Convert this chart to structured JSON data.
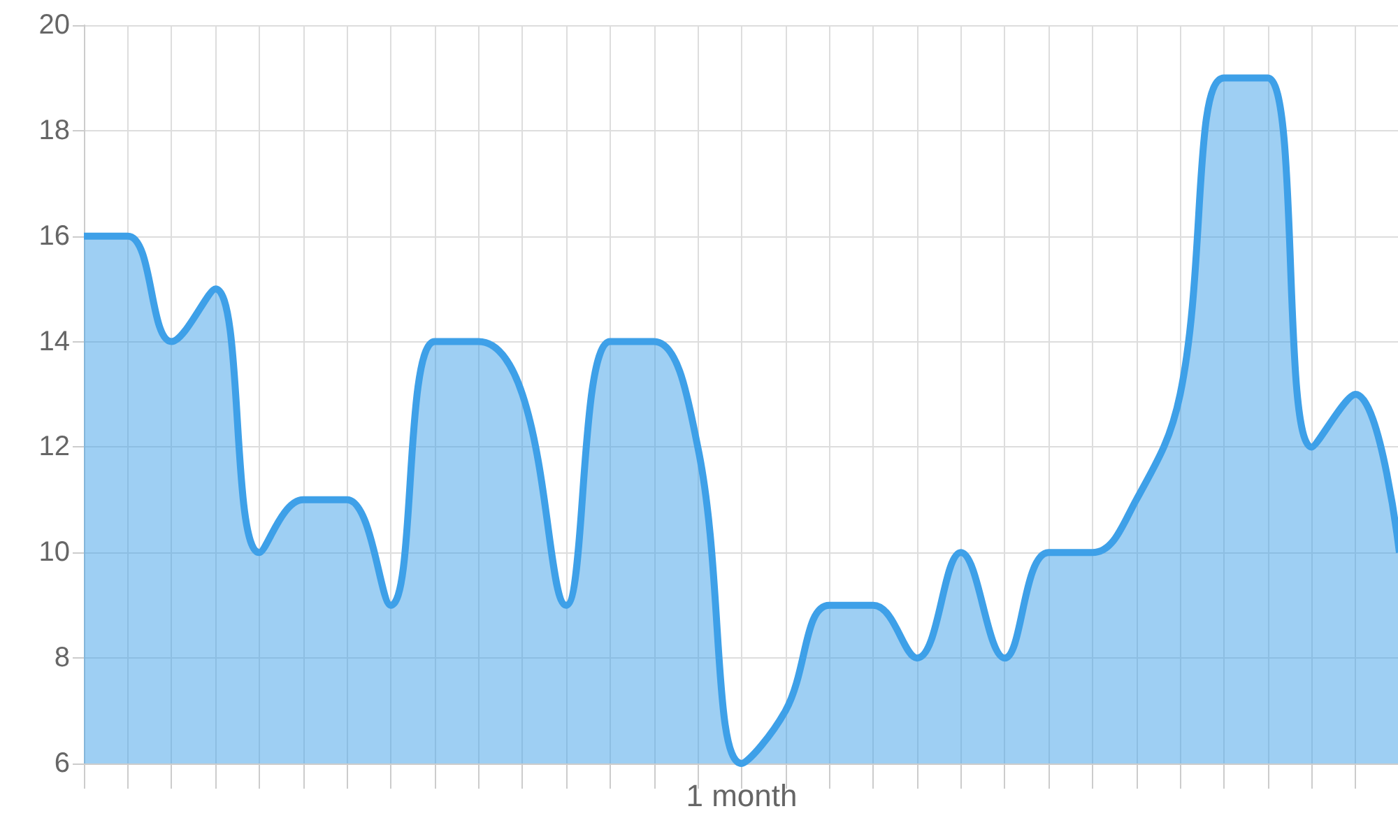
{
  "chart_data": {
    "type": "area",
    "categories": [
      null,
      null,
      null,
      null,
      null,
      null,
      null,
      null,
      null,
      null,
      null,
      null,
      null,
      null,
      null,
      "1 month",
      null,
      null,
      null,
      null,
      null,
      null,
      null,
      null,
      null,
      null,
      null,
      null,
      null,
      null,
      null
    ],
    "series": [
      {
        "color": "#3ea0e8",
        "values": [
          16,
          16,
          14,
          15,
          10,
          11,
          11,
          9,
          14,
          14,
          13,
          9,
          14,
          14,
          12,
          6,
          7,
          9,
          9,
          8,
          10,
          8,
          10,
          10,
          11,
          13,
          19,
          19,
          12,
          13,
          10
        ]
      }
    ],
    "ylim": [
      6,
      20
    ],
    "yticks": [
      6,
      8,
      10,
      12,
      14,
      16,
      18,
      20
    ],
    "grid": true,
    "marker": "none"
  }
}
